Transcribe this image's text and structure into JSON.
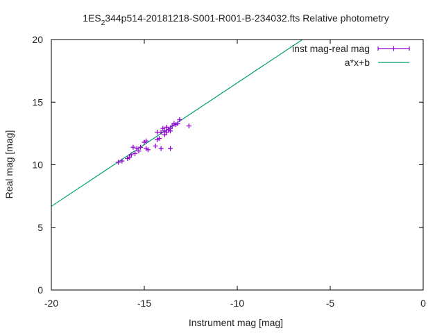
{
  "chart_data": {
    "type": "scatter",
    "title_main": "1ES",
    "title_sub": "2",
    "title_rest": "344p514-20181218-S001-R001-B-234032.fts Relative photometry",
    "xlabel": "Instrument mag [mag]",
    "ylabel": "Real mag [mag]",
    "xlim": [
      -20,
      0
    ],
    "ylim": [
      0,
      20
    ],
    "x_ticks": [
      -20,
      -15,
      -10,
      -5,
      0
    ],
    "x_tick_labels": [
      "-20",
      "-15",
      "-10",
      "-5",
      "0"
    ],
    "y_ticks": [
      0,
      5,
      10,
      15,
      20
    ],
    "y_tick_labels": [
      "0",
      "5",
      "10",
      "15",
      "20"
    ],
    "grid": false,
    "legend_position": "top-right",
    "series": [
      {
        "name": "inst mag-real mag",
        "kind": "points-with-errorbars",
        "color": "#9400d3",
        "points": [
          {
            "x": -16.4,
            "y": 10.2
          },
          {
            "x": -16.2,
            "y": 10.3
          },
          {
            "x": -15.9,
            "y": 10.5
          },
          {
            "x": -15.8,
            "y": 10.6
          },
          {
            "x": -15.7,
            "y": 10.8
          },
          {
            "x": -15.5,
            "y": 10.9
          },
          {
            "x": -15.6,
            "y": 11.4
          },
          {
            "x": -15.4,
            "y": 11.3
          },
          {
            "x": -15.3,
            "y": 11.1
          },
          {
            "x": -15.2,
            "y": 11.4
          },
          {
            "x": -15.0,
            "y": 11.8
          },
          {
            "x": -14.9,
            "y": 11.9
          },
          {
            "x": -14.9,
            "y": 11.3
          },
          {
            "x": -14.8,
            "y": 11.2
          },
          {
            "x": -14.4,
            "y": 11.5
          },
          {
            "x": -14.3,
            "y": 12.0
          },
          {
            "x": -14.3,
            "y": 12.6
          },
          {
            "x": -14.2,
            "y": 12.1
          },
          {
            "x": -14.1,
            "y": 11.3
          },
          {
            "x": -14.1,
            "y": 12.6
          },
          {
            "x": -14.0,
            "y": 12.9
          },
          {
            "x": -13.9,
            "y": 12.4
          },
          {
            "x": -13.9,
            "y": 12.7
          },
          {
            "x": -13.8,
            "y": 13.0
          },
          {
            "x": -13.8,
            "y": 12.6
          },
          {
            "x": -13.7,
            "y": 12.8
          },
          {
            "x": -13.6,
            "y": 12.9
          },
          {
            "x": -13.6,
            "y": 11.3
          },
          {
            "x": -13.6,
            "y": 12.7
          },
          {
            "x": -13.5,
            "y": 13.1
          },
          {
            "x": -13.4,
            "y": 13.3
          },
          {
            "x": -13.3,
            "y": 13.2
          },
          {
            "x": -13.2,
            "y": 13.3
          },
          {
            "x": -13.1,
            "y": 13.6
          },
          {
            "x": -12.6,
            "y": 13.1
          }
        ]
      },
      {
        "name": "a*x+b",
        "kind": "fit-line",
        "color": "#009e73",
        "slope": 0.986,
        "intercept": 26.4
      }
    ]
  }
}
